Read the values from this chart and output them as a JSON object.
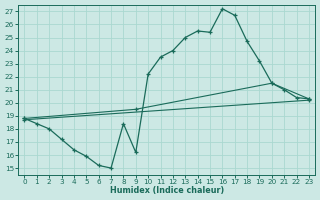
{
  "xlabel": "Humidex (Indice chaleur)",
  "bg_color": "#cce8e4",
  "grid_color": "#aad8d0",
  "line_color": "#1a6b5a",
  "xlim": [
    -0.5,
    23.5
  ],
  "ylim": [
    14.5,
    27.5
  ],
  "yticks": [
    15,
    16,
    17,
    18,
    19,
    20,
    21,
    22,
    23,
    24,
    25,
    26,
    27
  ],
  "xticks": [
    0,
    1,
    2,
    3,
    4,
    5,
    6,
    7,
    8,
    9,
    10,
    11,
    12,
    13,
    14,
    15,
    16,
    17,
    18,
    19,
    20,
    21,
    22,
    23
  ],
  "line1_x": [
    0,
    1,
    2,
    3,
    4,
    5,
    6,
    7,
    8,
    9,
    10,
    11,
    12,
    13,
    14,
    15,
    16,
    17,
    18,
    19,
    20,
    21,
    22,
    23
  ],
  "line1_y": [
    18.8,
    18.4,
    18.0,
    17.2,
    16.4,
    15.9,
    15.2,
    15.0,
    18.4,
    16.2,
    22.2,
    23.5,
    24.0,
    25.0,
    25.5,
    25.4,
    27.2,
    26.7,
    24.7,
    23.2,
    21.5,
    21.0,
    20.4,
    20.3
  ],
  "line2_x": [
    0,
    9,
    20,
    23
  ],
  "line2_y": [
    18.8,
    19.5,
    21.5,
    20.3
  ],
  "line3_x": [
    0,
    23
  ],
  "line3_y": [
    18.7,
    20.2
  ]
}
